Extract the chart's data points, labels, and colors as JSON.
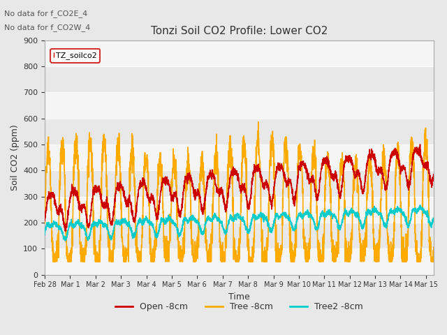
{
  "title": "Tonzi Soil CO2 Profile: Lower CO2",
  "xlabel": "Time",
  "ylabel": "Soil CO2 (ppm)",
  "ylim": [
    0,
    900
  ],
  "yticks": [
    0,
    100,
    200,
    300,
    400,
    500,
    600,
    700,
    800,
    900
  ],
  "annotation_lines": [
    "No data for f_CO2E_4",
    "No data for f_CO2W_4"
  ],
  "legend_label": "TZ_soilco2",
  "legend_entries": [
    "Open -8cm",
    "Tree -8cm",
    "Tree2 -8cm"
  ],
  "background_color": "#e8e8e8",
  "plot_bg": "#e8e8e8",
  "grid_color": "#ffffff",
  "xtick_labels": [
    "Feb 28",
    "Mar 1",
    "Mar 2",
    "Mar 3",
    "Mar 4",
    "Mar 5",
    "Mar 6",
    "Mar 7",
    "Mar 8",
    "Mar 9",
    "Mar 9",
    "Mar 10",
    "Mar 11",
    "Mar 12",
    "Mar 13",
    "Mar 14",
    "Mar 15"
  ],
  "n_days": 15.3,
  "open_color": "#cc0000",
  "tree_color": "#ffaa00",
  "tree2_color": "#00cccc",
  "open_lw": 1.2,
  "tree_lw": 1.2,
  "tree2_lw": 1.2
}
